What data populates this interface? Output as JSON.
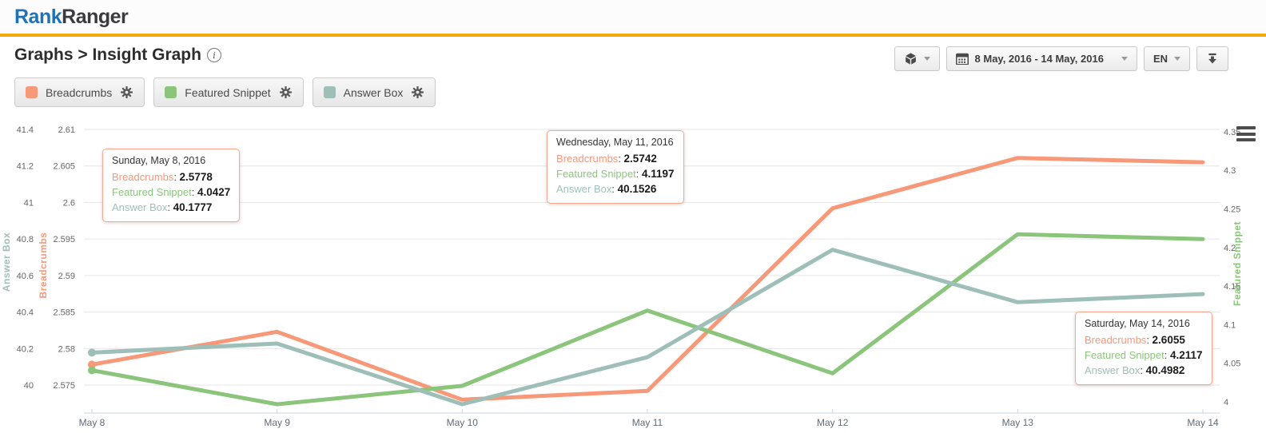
{
  "header": {
    "logo": {
      "part1": "Rank",
      "part2": "Ranger"
    },
    "breadcrumb": "Graphs > Insight Graph",
    "toolbar": {
      "date_range": "8 May, 2016 - 14 May, 2016",
      "language": "EN",
      "icons": [
        "cube-icon",
        "calendar-icon",
        "download-icon",
        "caret-down-icon"
      ]
    }
  },
  "legend": [
    {
      "label": "Breadcrumbs",
      "color": "#F79879",
      "gear_icon": "gear-icon"
    },
    {
      "label": "Featured Snippet",
      "color": "#8AC57B",
      "gear_icon": "gear-icon"
    },
    {
      "label": "Answer Box",
      "color": "#9DBFB8",
      "gear_icon": "gear-icon"
    }
  ],
  "tooltips": [
    {
      "date": "Sunday, May 8, 2016",
      "rows": [
        {
          "label": "Breadcrumbs",
          "value": "2.5778"
        },
        {
          "label": "Featured Snippet",
          "value": "4.0427"
        },
        {
          "label": "Answer Box",
          "value": "40.1777"
        }
      ]
    },
    {
      "date": "Wednesday, May 11, 2016",
      "rows": [
        {
          "label": "Breadcrumbs",
          "value": "2.5742"
        },
        {
          "label": "Featured Snippet",
          "value": "4.1197"
        },
        {
          "label": "Answer Box",
          "value": "40.1526"
        }
      ]
    },
    {
      "date": "Saturday, May 14, 2016",
      "rows": [
        {
          "label": "Breadcrumbs",
          "value": "2.6055"
        },
        {
          "label": "Featured Snippet",
          "value": "4.2117"
        },
        {
          "label": "Answer Box",
          "value": "40.4982"
        }
      ]
    }
  ],
  "chart_data": {
    "type": "line",
    "x": [
      "May 8",
      "May 9",
      "May 10",
      "May 11",
      "May 12",
      "May 13",
      "May 14"
    ],
    "series": [
      {
        "name": "Breadcrumbs",
        "axis": "breadcrumbs",
        "color": "#F79879",
        "values": [
          2.5778,
          2.5823,
          2.573,
          2.5742,
          2.5992,
          2.6061,
          2.6055
        ]
      },
      {
        "name": "Featured Snippet",
        "axis": "featured_snippet",
        "color": "#8AC57B",
        "values": [
          4.0427,
          3.999,
          4.0226,
          4.1197,
          4.0388,
          4.218,
          4.2117
        ]
      },
      {
        "name": "Answer Box",
        "axis": "answer_box",
        "color": "#9DBFB8",
        "values": [
          40.1777,
          40.2276,
          39.895,
          40.1526,
          40.741,
          40.4538,
          40.4982
        ]
      }
    ],
    "axes": {
      "answer_box": {
        "title": "Answer Box",
        "side": "left",
        "min": 40,
        "max": 41.4,
        "ticks": [
          "40",
          "40.2",
          "40.4",
          "40.6",
          "40.8",
          "41",
          "41.2",
          "41.4"
        ]
      },
      "breadcrumbs": {
        "title": "Breadcrumbs",
        "side": "left",
        "min": 2.575,
        "max": 2.61,
        "ticks": [
          "2.575",
          "2.58",
          "2.585",
          "2.59",
          "2.595",
          "2.6",
          "2.605",
          "2.61"
        ]
      },
      "featured_snippet": {
        "title": "Featured Snippet",
        "side": "right",
        "min": 4,
        "max": 4.35,
        "ticks": [
          "4",
          "4.05",
          "4.1",
          "4.15",
          "4.2",
          "4.25",
          "4.3",
          "4.35"
        ]
      }
    },
    "grid": true,
    "legend_position": "top-left",
    "markers_on_first_point": true
  }
}
